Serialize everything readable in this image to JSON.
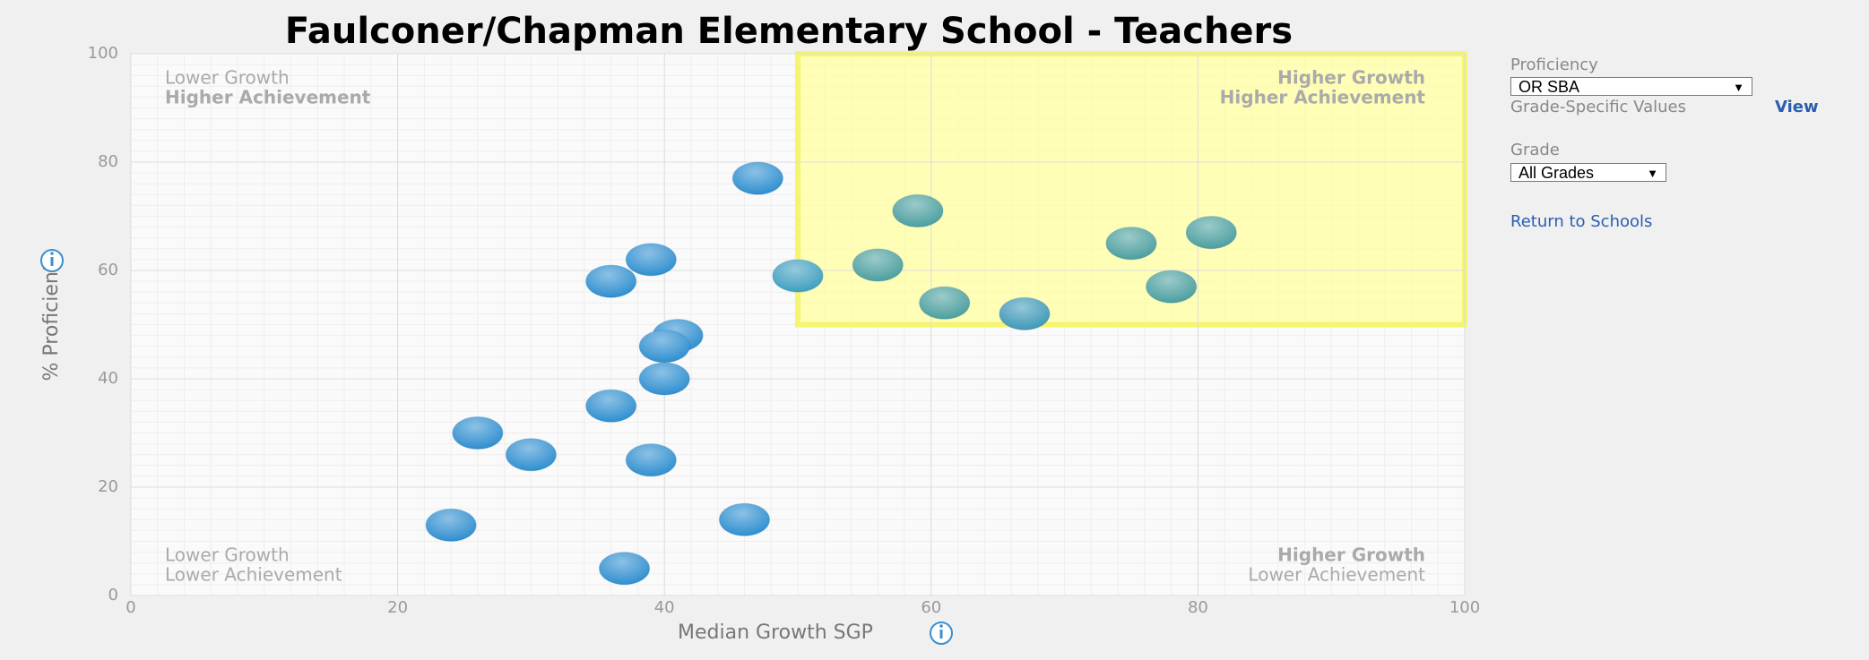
{
  "chart_data": {
    "type": "scatter",
    "title": "Faulconer/Chapman Elementary School - Teachers",
    "x_label": "Median Growth SGP",
    "y_label": "% Proficient",
    "x": [
      47,
      39,
      36,
      41,
      40,
      40,
      36,
      26,
      30,
      39,
      24,
      46,
      37,
      50,
      59,
      56,
      61,
      67,
      75,
      81,
      78
    ],
    "values": [
      77,
      62,
      58,
      48,
      46,
      40,
      35,
      30,
      26,
      25,
      13,
      14,
      5,
      59,
      71,
      61,
      54,
      52,
      65,
      67,
      57
    ],
    "colors": [
      "#2f8fd0",
      "#2f8fd0",
      "#2f8fd0",
      "#2f8fd0",
      "#2f8fd0",
      "#2f8fd0",
      "#2f8fd0",
      "#2f8fd0",
      "#2f8fd0",
      "#2f8fd0",
      "#2f8fd0",
      "#2f8fd0",
      "#2f8fd0",
      "#3f9fc0",
      "#4c9f9f",
      "#4c9f9f",
      "#4c9f9f",
      "#3f98b8",
      "#4c9f9f",
      "#4c9f9f",
      "#4c9f9f"
    ],
    "xlim": [
      0,
      100
    ],
    "ylim": [
      0,
      100
    ],
    "xticks": [
      0,
      20,
      40,
      60,
      80,
      100
    ],
    "yticks": [
      0,
      20,
      40,
      60,
      80,
      100
    ],
    "grid": true,
    "highlight": {
      "xlim": [
        50,
        100
      ],
      "ylim": [
        50,
        100
      ],
      "color": "#ffff99"
    },
    "quadrants": {
      "top_left": [
        "Lower Growth",
        "Higher Achievement"
      ],
      "top_right": [
        "Higher Growth",
        "Higher Achievement"
      ],
      "bottom_left": [
        "Lower Growth",
        "Lower Achievement"
      ],
      "bottom_right": [
        "Higher Growth",
        "Lower Achievement"
      ]
    }
  },
  "controls": {
    "proficiency_label": "Proficiency",
    "proficiency_value": "OR SBA",
    "grade_specific": "Grade-Specific Values",
    "view_link": "View",
    "grade_label": "Grade",
    "grade_value": "All Grades",
    "return_link": "Return to Schools"
  }
}
